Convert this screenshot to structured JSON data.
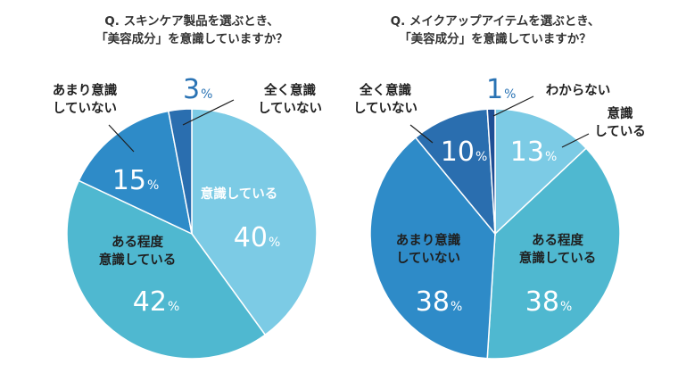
{
  "chart_data": [
    {
      "type": "pie",
      "title": [
        "Q. スキンケア製品を選ぶとき、",
        "「美容成分」を意識していますか？"
      ],
      "unit": "%",
      "start_angle_deg": 0,
      "slices": [
        {
          "label": [
            "意識している"
          ],
          "value": 40,
          "color": "#7ccbe5",
          "text": "white",
          "outside": false
        },
        {
          "label": [
            "ある程度",
            "意識している"
          ],
          "value": 42,
          "color": "#4fb8d0",
          "text": "dark",
          "outside": false
        },
        {
          "label": [
            "あまり意識",
            "していない"
          ],
          "value": 15,
          "color": "#2e8bc8",
          "text": "dark",
          "outside": true
        },
        {
          "label": [
            "全く意識",
            "していない"
          ],
          "value": 3,
          "color": "#2a6eaf",
          "text": "dark",
          "outside": true
        }
      ]
    },
    {
      "type": "pie",
      "title": [
        "Q. メイクアップアイテムを選ぶとき、",
        "「美容成分」を意識していますか？"
      ],
      "unit": "%",
      "start_angle_deg": 0,
      "slices": [
        {
          "label": [
            "意識",
            "している"
          ],
          "value": 13,
          "color": "#7ccbe5",
          "text": "dark",
          "outside": true
        },
        {
          "label": [
            "ある程度",
            "意識している"
          ],
          "value": 38,
          "color": "#4fb8d0",
          "text": "dark",
          "outside": false
        },
        {
          "label": [
            "あまり意識",
            "していない"
          ],
          "value": 38,
          "color": "#2e8bc8",
          "text": "dark",
          "outside": false
        },
        {
          "label": [
            "全く意識",
            "していない"
          ],
          "value": 10,
          "color": "#2a6eaf",
          "text": "dark",
          "outside": true
        },
        {
          "label": [
            "わからない"
          ],
          "value": 1,
          "color": "#1f4e95",
          "text": "dark",
          "outside": true
        }
      ]
    }
  ]
}
